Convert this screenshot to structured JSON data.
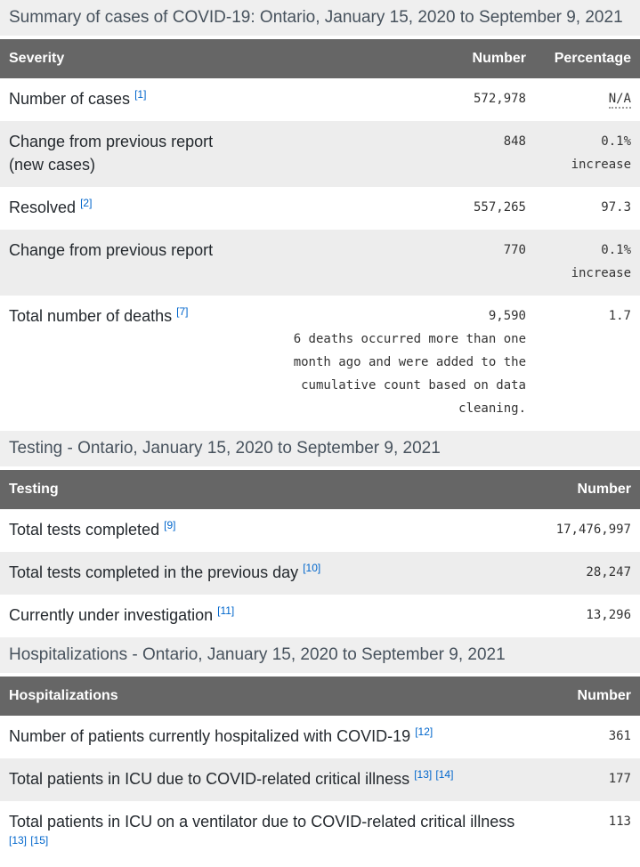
{
  "colors": {
    "table_header_bg": "#666666",
    "table_header_text": "#ffffff",
    "caption_bg": "#efefef",
    "caption_text": "#47525d",
    "row_alt_bg": "#ededed",
    "label_text": "#24292e",
    "number_text": "#333333",
    "footnote_link": "#0066cc"
  },
  "sections": [
    {
      "caption": "Summary of cases of COVID-19: Ontario, January 15, 2020 to September 9, 2021",
      "table": {
        "headers": [
          "Severity",
          "Number",
          "Percentage"
        ],
        "rows": [
          {
            "label": "Number of cases",
            "sup1": "[1]",
            "number": "572,978",
            "pct": "N/A"
          },
          {
            "label": "Change from previous report",
            "label2": "(new cases)",
            "number": "848",
            "pct": "0.1%",
            "pct2": "increase"
          },
          {
            "label": "Resolved",
            "sup1": "[2]",
            "number": "557,265",
            "pct": "97.3"
          },
          {
            "label": "Change from previous report",
            "number": "770",
            "pct": "0.1%",
            "pct2": "increase"
          },
          {
            "label": "Total number of deaths",
            "sup1": "[7]",
            "number": "9,590",
            "note": "6 deaths occurred more than one month ago and were added to the cumulative count based on data cleaning.",
            "pct": "1.7"
          }
        ]
      }
    },
    {
      "caption": "Testing - Ontario, January 15, 2020 to September 9, 2021",
      "table": {
        "headers": [
          "Testing",
          "Number"
        ],
        "rows": [
          {
            "label": "Total tests completed",
            "sup1": "[9]",
            "number": "17,476,997"
          },
          {
            "label": "Total tests completed in the previous day",
            "sup1": "[10]",
            "number": "28,247"
          },
          {
            "label": "Currently under investigation",
            "sup1": "[11]",
            "number": "13,296"
          }
        ]
      }
    },
    {
      "caption": "Hospitalizations - Ontario, January 15, 2020 to September 9, 2021",
      "table": {
        "headers": [
          "Hospitalizations",
          "Number"
        ],
        "rows": [
          {
            "label": "Number of patients currently hospitalized with COVID-19",
            "sup1": "[12]",
            "number": "361"
          },
          {
            "label": "Total patients in ICU due to COVID-related critical illness",
            "sup1": "[13]",
            "sup2": "[14]",
            "number": "177"
          },
          {
            "label": "Total patients in ICU on a ventilator due to COVID-related critical illness",
            "sup1": "[13]",
            "sup2": "[15]",
            "number": "113"
          }
        ]
      }
    }
  ],
  "chart_data": [
    {
      "type": "table",
      "title": "Summary of cases of COVID-19: Ontario, January 15, 2020 to September 9, 2021",
      "columns": [
        "Severity",
        "Number",
        "Percentage"
      ],
      "rows": [
        [
          "Number of cases [1]",
          "572,978",
          "N/A"
        ],
        [
          "Change from previous report (new cases)",
          "848",
          "0.1% increase"
        ],
        [
          "Resolved [2]",
          "557,265",
          "97.3"
        ],
        [
          "Change from previous report",
          "770",
          "0.1% increase"
        ],
        [
          "Total number of deaths [7]",
          "9,590 — 6 deaths occurred more than one month ago and were added to the cumulative count based on data cleaning.",
          "1.7"
        ]
      ]
    },
    {
      "type": "table",
      "title": "Testing - Ontario, January 15, 2020 to September 9, 2021",
      "columns": [
        "Testing",
        "Number"
      ],
      "rows": [
        [
          "Total tests completed [9]",
          "17,476,997"
        ],
        [
          "Total tests completed in the previous day [10]",
          "28,247"
        ],
        [
          "Currently under investigation [11]",
          "13,296"
        ]
      ]
    },
    {
      "type": "table",
      "title": "Hospitalizations - Ontario, January 15, 2020 to September 9, 2021",
      "columns": [
        "Hospitalizations",
        "Number"
      ],
      "rows": [
        [
          "Number of patients currently hospitalized with COVID-19 [12]",
          "361"
        ],
        [
          "Total patients in ICU due to COVID-related critical illness [13] [14]",
          "177"
        ],
        [
          "Total patients in ICU on a ventilator due to COVID-related critical illness [13] [15]",
          "113"
        ]
      ]
    }
  ]
}
